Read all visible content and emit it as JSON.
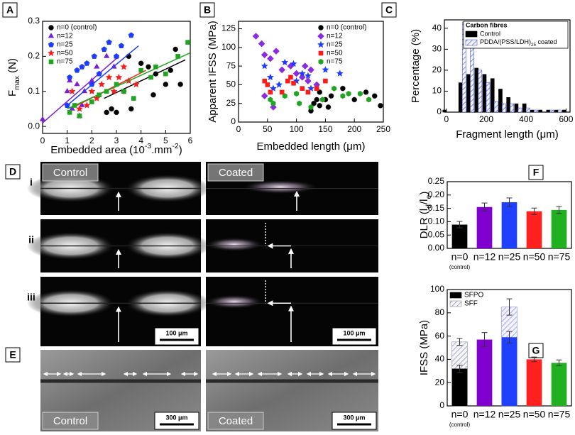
{
  "chart_data": [
    {
      "type": "scatter",
      "panel": "A",
      "xlabel": [
        {
          "text": "Embedded area (10"
        },
        {
          "text": "-3",
          "style": "super"
        },
        {
          "text": ".mm"
        },
        {
          "text": "-2",
          "style": "super"
        },
        {
          "text": ")"
        }
      ],
      "ylabel": [
        {
          "text": "F"
        },
        {
          "text": "max",
          "style": "sub"
        },
        {
          "text": " (N)"
        }
      ],
      "xlim": [
        0,
        6
      ],
      "xticks": [
        0,
        1,
        2,
        3,
        4,
        5,
        6
      ],
      "ylim": [
        -0.02,
        0.3
      ],
      "yticks": [
        {
          "value": 0,
          "label": "0.0"
        },
        {
          "value": 0.1,
          "label": "0.1"
        },
        {
          "value": 0.2,
          "label": "0.2"
        },
        {
          "value": 0.3,
          "label": "0.3"
        }
      ],
      "legend": "upper left",
      "series": [
        {
          "name": "n=0 (control)",
          "color": "#000000",
          "marker": "circle",
          "x": [
            2.6,
            2.8,
            3.0,
            3.3,
            3.6,
            4.0,
            4.3,
            4.6,
            5.0,
            5.2,
            5.4,
            5.6,
            3.5,
            4.5
          ],
          "values": [
            0.04,
            0.05,
            0.04,
            0.1,
            0.05,
            0.18,
            0.17,
            0.15,
            0.12,
            0.16,
            0.22,
            0.12,
            0.2,
            0.09
          ],
          "fit": {
            "x": [
              2.5,
              5.8
            ],
            "y": [
              0.08,
              0.19
            ]
          }
        },
        {
          "name": "n=12",
          "color": "#7b1fd6",
          "marker": "triangle",
          "x": [
            0,
            1.0,
            1.1,
            1.2,
            1.4,
            1.5,
            1.7,
            2.0,
            2.2,
            2.6,
            2.9,
            3.0,
            1.6
          ],
          "values": [
            0.02,
            0.1,
            0.13,
            0.05,
            0.12,
            0.03,
            0.1,
            0.13,
            0.17,
            0.2,
            0.17,
            0.2,
            0.06
          ],
          "fit": {
            "x": [
              0,
              3.1
            ],
            "y": [
              0.01,
              0.2
            ]
          }
        },
        {
          "name": "n=25",
          "color": "#1e3cff",
          "marker": "pentagon",
          "x": [
            1.0,
            1.1,
            1.4,
            1.6,
            1.8,
            2.1,
            2.3,
            2.5,
            2.7,
            3.0,
            3.6,
            3.2,
            2.0
          ],
          "values": [
            0.06,
            0.14,
            0.16,
            0.17,
            0.18,
            0.2,
            0.15,
            0.22,
            0.24,
            0.2,
            0.26,
            0.23,
            0.12
          ],
          "fit": {
            "x": [
              1.0,
              3.9
            ],
            "y": [
              0.06,
              0.23
            ]
          }
        },
        {
          "name": "n=50",
          "color": "#ff1a1a",
          "marker": "star",
          "x": [
            1.5,
            1.8,
            2.0,
            2.2,
            2.4,
            2.7,
            2.9,
            3.1,
            3.3,
            3.5,
            3.8,
            1.2
          ],
          "values": [
            0.05,
            0.06,
            0.1,
            0.08,
            0.12,
            0.14,
            0.1,
            0.14,
            0.17,
            0.13,
            0.12,
            0.1
          ],
          "fit": {
            "x": [
              1.4,
              4.2
            ],
            "y": [
              0.06,
              0.16
            ]
          }
        },
        {
          "name": "n=75",
          "color": "#1fa51f",
          "marker": "square",
          "x": [
            1.1,
            1.3,
            1.5,
            2.0,
            2.3,
            2.6,
            3.0,
            3.3,
            3.7,
            4.0,
            4.6,
            5.0,
            5.5,
            5.9,
            4.4
          ],
          "values": [
            0.04,
            0.06,
            0.03,
            0.07,
            0.09,
            0.1,
            0.12,
            0.1,
            0.08,
            0.16,
            0.17,
            0.15,
            0.2,
            0.24,
            0.14
          ],
          "fit": {
            "x": [
              1.0,
              6.0
            ],
            "y": [
              0.05,
              0.21
            ]
          }
        }
      ]
    },
    {
      "type": "scatter",
      "panel": "B",
      "xlabel": [
        {
          "text": "Embedded length ("
        },
        {
          "text": "μ"
        },
        {
          "text": "m)"
        }
      ],
      "ylabel": "Apparent IFSS (MPa)",
      "xlim": [
        0,
        250
      ],
      "xticks": [
        0,
        50,
        100,
        150,
        200,
        250
      ],
      "ylim": [
        0,
        135
      ],
      "yticks": [
        0,
        25,
        50,
        75,
        100,
        125
      ],
      "legend": "upper right",
      "series": [
        {
          "name": "n=0 (control)",
          "color": "#000000",
          "marker": "circle",
          "x": [
            125,
            130,
            135,
            140,
            150,
            155,
            160,
            180,
            200,
            220,
            235,
            245,
            140
          ],
          "values": [
            15,
            25,
            30,
            40,
            30,
            20,
            35,
            45,
            30,
            40,
            35,
            22,
            22
          ]
        },
        {
          "name": "n=12",
          "color": "#8a2be2",
          "marker": "diamond",
          "x": [
            30,
            40,
            45,
            55,
            65,
            75,
            90,
            100,
            110,
            115,
            120,
            125,
            135,
            45,
            60
          ],
          "values": [
            115,
            105,
            90,
            85,
            95,
            70,
            75,
            65,
            60,
            75,
            55,
            70,
            50,
            35,
            20
          ]
        },
        {
          "name": "n=25",
          "color": "#1e3cff",
          "marker": "star",
          "x": [
            45,
            55,
            60,
            80,
            95,
            100,
            110,
            120,
            125,
            150,
            175,
            70
          ],
          "values": [
            75,
            60,
            45,
            80,
            78,
            55,
            65,
            62,
            45,
            70,
            65,
            50
          ]
        },
        {
          "name": "n=50",
          "color": "#ff1a1a",
          "marker": "square",
          "x": [
            45,
            50,
            55,
            75,
            85,
            95,
            110,
            120,
            135,
            150,
            90
          ],
          "values": [
            55,
            50,
            40,
            40,
            55,
            52,
            45,
            40,
            45,
            55,
            60
          ]
        },
        {
          "name": "n=75",
          "color": "#1fa51f",
          "marker": "hexagon",
          "x": [
            55,
            60,
            80,
            105,
            125,
            145,
            165,
            180,
            190,
            210,
            225,
            100
          ],
          "values": [
            30,
            25,
            35,
            25,
            20,
            30,
            45,
            35,
            38,
            38,
            30,
            38
          ]
        }
      ]
    },
    {
      "type": "bar",
      "panel": "C",
      "xlabel": [
        {
          "text": "Fragment length ("
        },
        {
          "text": "μ"
        },
        {
          "text": "m)"
        }
      ],
      "ylabel": "Percentage (%)",
      "xlim": [
        -10,
        620
      ],
      "xticks": [
        0,
        200,
        400,
        600
      ],
      "ylim": [
        0,
        44
      ],
      "yticks": [
        0,
        10,
        20,
        30,
        40
      ],
      "legend": "upper right",
      "legend_title": "Carbon fibres",
      "x": [
        0,
        40,
        80,
        120,
        160,
        200,
        240,
        280,
        320,
        360,
        400,
        440,
        480,
        520,
        560,
        600
      ],
      "series": [
        {
          "name": "Control",
          "color": "#000000",
          "values": [
            1,
            0,
            14,
            18,
            21,
            18,
            16,
            11,
            7,
            4,
            4,
            1,
            1,
            1,
            1,
            1
          ]
        },
        {
          "name": [
            {
              "text": "PDDA/(PSS/LDH)"
            },
            {
              "text": "25",
              "style": "sub"
            },
            {
              "text": " coated"
            }
          ],
          "color": "#4a5cd8",
          "pattern": "hatch",
          "values": [
            0,
            0,
            43,
            37,
            20,
            14,
            5,
            4,
            4,
            2,
            2,
            1,
            0,
            1,
            1,
            0
          ]
        }
      ]
    },
    {
      "type": "bar",
      "panel": "F",
      "ylabel": [
        {
          "text": "DLR (l"
        },
        {
          "text": "d",
          "style": "sub"
        },
        {
          "text": "/l"
        },
        {
          "text": "e",
          "style": "sub"
        },
        {
          "text": ")"
        }
      ],
      "categories": [
        "n=0",
        "n=12",
        "n=25",
        "n=50",
        "n=75"
      ],
      "x_note": "(control)",
      "ylim": [
        0,
        0.25
      ],
      "yticks": [
        {
          "value": 0,
          "label": "0.00"
        },
        {
          "value": 0.05,
          "label": "0.05"
        },
        {
          "value": 0.1,
          "label": "0.10"
        },
        {
          "value": 0.15,
          "label": "0.15"
        },
        {
          "value": 0.2,
          "label": "0.20"
        },
        {
          "value": 0.25,
          "label": "0.25"
        }
      ],
      "series": [
        {
          "colors": [
            "#000000",
            "#8000d0",
            "#2040ff",
            "#ff2020",
            "#20b020"
          ],
          "values": [
            0.089,
            0.155,
            0.173,
            0.139,
            0.144
          ],
          "errors": [
            0.012,
            0.015,
            0.016,
            0.012,
            0.013
          ]
        }
      ]
    },
    {
      "type": "bar",
      "panel": "G",
      "overlay": true,
      "ylabel": "IFSS (MPa)",
      "categories": [
        "n=0",
        "n=12",
        "n=25",
        "n=50",
        "n=75"
      ],
      "x_note": "(control)",
      "ylim": [
        0,
        100
      ],
      "yticks": [
        0,
        20,
        40,
        60,
        80,
        100
      ],
      "legend": "upper left",
      "series": [
        {
          "name": "SFPO",
          "color": "#000000",
          "colors": [
            "#000000",
            "#8000d0",
            "#2040ff",
            "#ff2020",
            "#20b020"
          ],
          "values": [
            32,
            57,
            59,
            40,
            37
          ],
          "errors": [
            3,
            6,
            5,
            2,
            2.5
          ]
        },
        {
          "name": "SFF",
          "color": "#8c8c8c",
          "pattern": "hatch",
          "colors": [
            "#8c8c8c",
            null,
            "#7f86ff",
            null,
            null
          ],
          "values": [
            55,
            null,
            85,
            null,
            null
          ],
          "errors": [
            3,
            null,
            7,
            null,
            null
          ]
        }
      ]
    }
  ],
  "micrographs": {
    "D": {
      "panel": "D",
      "columns": [
        "Control",
        "Coated"
      ],
      "rows": [
        "i",
        "ii",
        "iii"
      ],
      "scale_bar": "100 μm"
    },
    "E": {
      "panel": "E",
      "columns": [
        "Control",
        "Coated"
      ],
      "scale_bar": "300 μm"
    }
  }
}
